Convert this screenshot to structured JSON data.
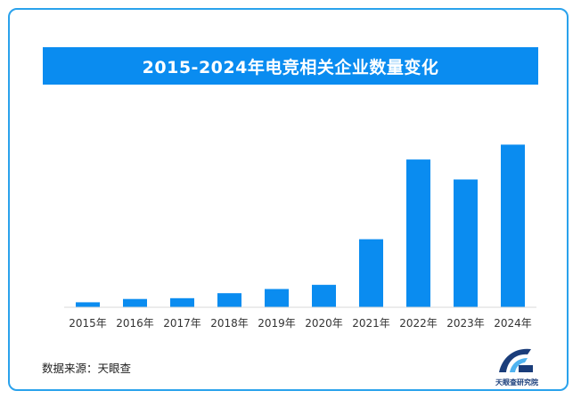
{
  "colors": {
    "frame": "#2aa2ec",
    "title_background": "#0a8cf0",
    "bar": "#0a8cf0",
    "baseline": "#d8d8d8",
    "logo_dark": "#1a3d7a",
    "logo_light": "#4fb3f0"
  },
  "chart_data": {
    "type": "bar",
    "title": "2015-2024年电竞相关企业数量变化",
    "xlabel": "",
    "ylabel": "",
    "categories": [
      "2015年",
      "2016年",
      "2017年",
      "2018年",
      "2019年",
      "2020年",
      "2021年",
      "2022年",
      "2023年",
      "2024年"
    ],
    "values": [
      3,
      5,
      5.5,
      8.5,
      11,
      13.5,
      41,
      89,
      77,
      98
    ],
    "ylim": [
      0,
      110
    ],
    "grid": false,
    "legend": "none",
    "y_axis_visible": false
  },
  "source": {
    "label": "数据来源：",
    "name": "天眼查"
  },
  "logo": {
    "text": "天眼查研究院",
    "icon": "tianyancha-logo-icon"
  }
}
